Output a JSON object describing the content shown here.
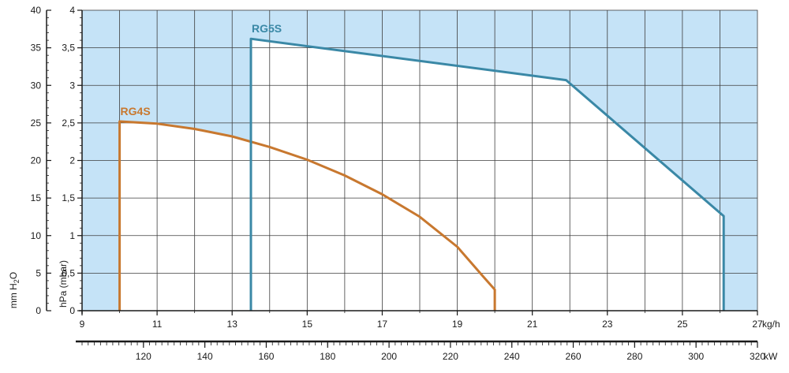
{
  "chart_data": {
    "type": "line",
    "x_axis": {
      "unit_label": "kg/h",
      "range": [
        9,
        27
      ],
      "ticks": [
        9,
        11,
        13,
        15,
        17,
        19,
        21,
        23,
        25,
        27
      ],
      "tick_labels": [
        "9",
        "11",
        "13",
        "15",
        "17",
        "19",
        "21",
        "23",
        "25",
        "27"
      ],
      "grid_step": 1
    },
    "secondary_x_axis": {
      "unit_label": "kW",
      "range": [
        100,
        320
      ],
      "ticks": [
        120,
        140,
        160,
        180,
        200,
        220,
        240,
        260,
        280,
        300,
        320
      ],
      "tick_labels": [
        "120",
        "140",
        "160",
        "180",
        "200",
        "220",
        "240",
        "260",
        "280",
        "300",
        "320"
      ],
      "minor_step": 2
    },
    "y_axis": {
      "label": "hPa (mbar)",
      "range": [
        0,
        4
      ],
      "ticks": [
        0,
        0.5,
        1,
        1.5,
        2,
        2.5,
        3,
        3.5,
        4
      ],
      "tick_labels": [
        "0",
        "0,5",
        "1",
        "1,5",
        "2",
        "2,5",
        "3",
        "3,5",
        "4"
      ]
    },
    "secondary_y_axis": {
      "label_main": "mm H",
      "label_sub": "2",
      "label_end": "O",
      "range": [
        0,
        40
      ],
      "ticks": [
        0,
        5,
        10,
        15,
        20,
        25,
        30,
        35,
        40
      ],
      "tick_labels": [
        "0",
        "5",
        "10",
        "15",
        "20",
        "25",
        "30",
        "35",
        "40"
      ]
    },
    "grid": true,
    "series": [
      {
        "name": "RG4S",
        "color": "#c8782f",
        "points": [
          [
            10,
            0
          ],
          [
            10,
            2.52
          ],
          [
            11,
            2.49
          ],
          [
            12,
            2.42
          ],
          [
            13,
            2.32
          ],
          [
            14,
            2.18
          ],
          [
            15,
            2.01
          ],
          [
            16,
            1.8
          ],
          [
            17,
            1.55
          ],
          [
            18,
            1.25
          ],
          [
            19,
            0.85
          ],
          [
            19.7,
            0.45
          ],
          [
            20,
            0.28
          ],
          [
            20,
            0
          ]
        ]
      },
      {
        "name": "RG5S",
        "color": "#3a88a6",
        "points": [
          [
            13.5,
            0
          ],
          [
            13.5,
            3.62
          ],
          [
            21.9,
            3.07
          ],
          [
            26.1,
            1.26
          ],
          [
            26.1,
            0
          ]
        ]
      }
    ],
    "colors": {
      "outside_range_fill": "#c5e3f7",
      "grid": "#3d3d3d",
      "axis": "#1a1a1a",
      "text": "#1a1a1a"
    }
  }
}
